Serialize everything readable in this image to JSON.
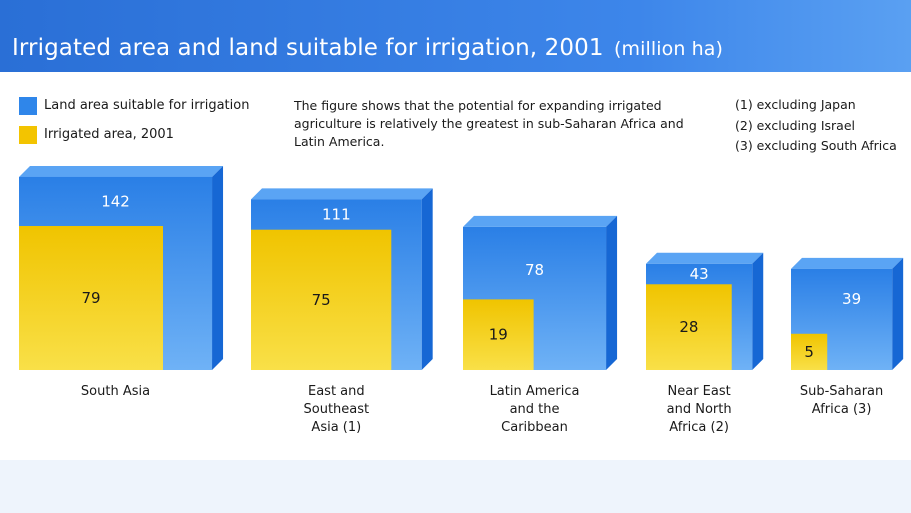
{
  "title": "Irrigated area and land suitable for irrigation, 2001",
  "title_unit": "(million ha)",
  "description": "The figure shows that the potential for expanding irrigated agriculture is relatively the greatest in sub-Saharan Africa and Latin America.",
  "notes": [
    "(1) excluding Japan",
    "(2) excluding Israel",
    "(3) excluding South Africa"
  ],
  "colors": {
    "suitable": "#2f86ea",
    "irrigated": "#f3c400",
    "header": "#2a6fd6"
  },
  "chart_data": {
    "type": "bar",
    "categories": [
      "South Asia",
      "East and\nSoutheast\nAsia (1)",
      "Latin America\nand the\nCaribbean",
      "Near East\nand North\nAfrica (2)",
      "Sub-Saharan\nAfrica (3)"
    ],
    "series": [
      {
        "name": "Land area suitable for irrigation",
        "values": [
          142,
          111,
          78,
          43,
          39
        ]
      },
      {
        "name": "Irrigated area, 2001",
        "values": [
          79,
          75,
          19,
          28,
          5
        ]
      }
    ]
  }
}
